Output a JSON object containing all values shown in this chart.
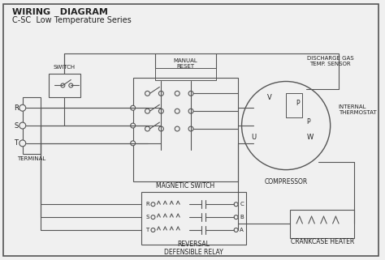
{
  "title_line1": "WIRING   DIAGRAM",
  "title_line2": "C-SC  Low Temperature Series",
  "bg_color": "#f0f0f0",
  "border_color": "#555555",
  "line_color": "#555555",
  "text_color": "#222222",
  "labels": {
    "switch": "SWITCH",
    "manual_reset": "MANUAL\nRESET",
    "discharge_gas": "DISCHARGE GAS\nTEMP. SENSOR",
    "internal_thermostat": "INTERNAL\nTHERMOSTAT",
    "terminal": "TERMINAL",
    "magnetic_switch": "MAGNETIC SWITCH",
    "reversal_relay": "REVERSAL\nDEFENSIBLE RELAY",
    "compressor": "COMPRESSOR",
    "crankcase_heater": "CRANKCASE HEATER",
    "R": "R",
    "S": "S",
    "T": "T",
    "V": "V",
    "U": "U",
    "W": "W",
    "P1": "P",
    "P2": "P",
    "C": "C",
    "B": "B",
    "A": "A",
    "R2": "R",
    "S2": "S",
    "T2": "T"
  }
}
